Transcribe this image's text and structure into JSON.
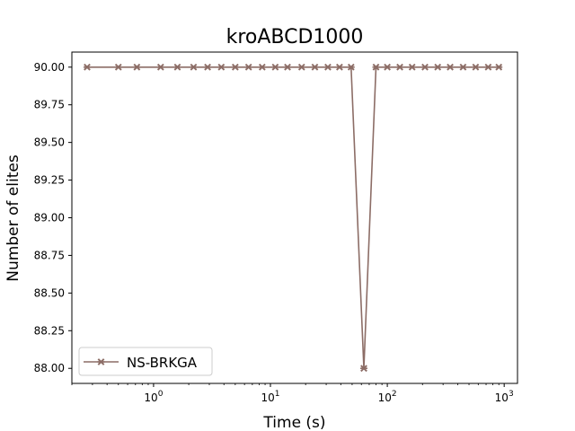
{
  "chart_data": {
    "type": "line",
    "title": "kroABCD1000",
    "xlabel": "Time (s)",
    "ylabel": "Number of elites",
    "xscale": "log",
    "xlim": [
      0.2,
      1300
    ],
    "ylim": [
      87.9,
      90.1
    ],
    "x_ticks": [
      {
        "value": 1,
        "base": "10",
        "exp": "0"
      },
      {
        "value": 10,
        "base": "10",
        "exp": "1"
      },
      {
        "value": 100,
        "base": "10",
        "exp": "2"
      },
      {
        "value": 1000,
        "base": "10",
        "exp": "3"
      }
    ],
    "y_ticks": [
      "88.00",
      "88.25",
      "88.50",
      "88.75",
      "89.00",
      "89.25",
      "89.50",
      "89.75",
      "90.00"
    ],
    "grid": false,
    "legend_position": "lower-left",
    "series": [
      {
        "name": "NS-BRKGA",
        "color": "#8c6d66",
        "marker": "x",
        "x": [
          0.27,
          0.5,
          0.72,
          1.15,
          1.6,
          2.2,
          2.9,
          3.8,
          5.0,
          6.5,
          8.5,
          11,
          14,
          18.5,
          24,
          31,
          39,
          49,
          63,
          80,
          100,
          128,
          163,
          210,
          270,
          345,
          445,
          570,
          730,
          900
        ],
        "y": [
          90,
          90,
          90,
          90,
          90,
          90,
          90,
          90,
          90,
          90,
          90,
          90,
          90,
          90,
          90,
          90,
          90,
          90,
          88,
          90,
          90,
          90,
          90,
          90,
          90,
          90,
          90,
          90,
          90,
          90
        ]
      }
    ]
  }
}
